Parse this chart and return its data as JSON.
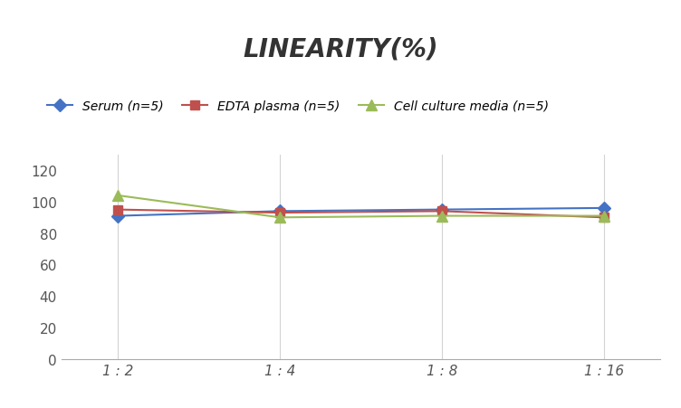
{
  "title": "LINEARITY(%)",
  "x_labels": [
    "1 : 2",
    "1 : 4",
    "1 : 8",
    "1 : 16"
  ],
  "x_positions": [
    0,
    1,
    2,
    3
  ],
  "series": [
    {
      "label": "Serum (n=5)",
      "values": [
        91,
        94,
        95,
        96
      ],
      "color": "#4472C4",
      "marker": "D",
      "linewidth": 1.5,
      "markersize": 7
    },
    {
      "label": "EDTA plasma (n=5)",
      "values": [
        95,
        93,
        94,
        90
      ],
      "color": "#C0504D",
      "marker": "s",
      "linewidth": 1.5,
      "markersize": 7
    },
    {
      "label": "Cell culture media (n=5)",
      "values": [
        104,
        90,
        91,
        91
      ],
      "color": "#9BBB59",
      "marker": "^",
      "linewidth": 1.5,
      "markersize": 8
    }
  ],
  "ylim": [
    0,
    130
  ],
  "yticks": [
    0,
    20,
    40,
    60,
    80,
    100,
    120
  ],
  "background_color": "#ffffff",
  "grid_color": "#d3d3d3",
  "title_fontsize": 20,
  "legend_fontsize": 10,
  "tick_fontsize": 11
}
